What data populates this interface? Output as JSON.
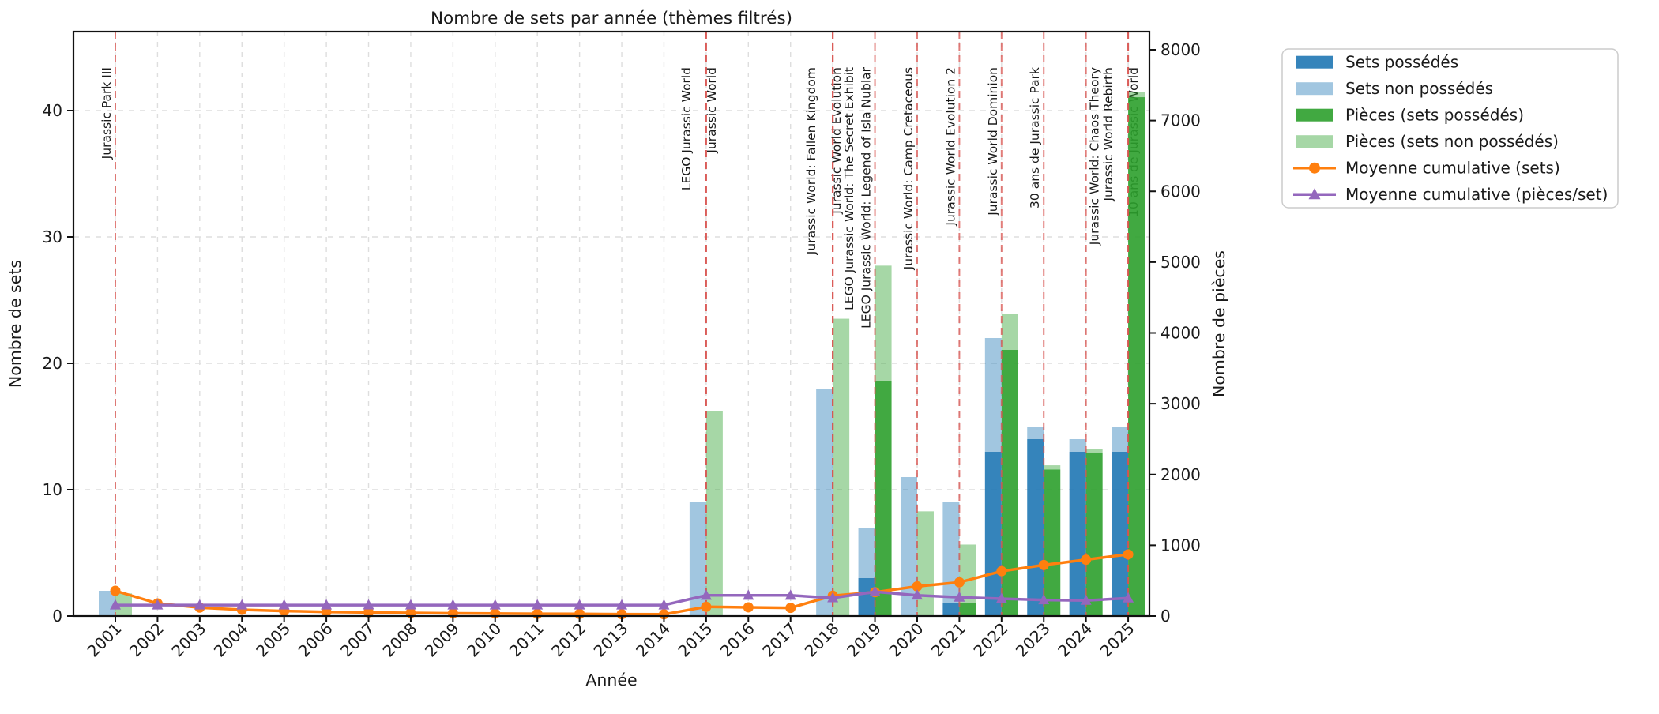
{
  "figure": {
    "title": "Nombre de sets par année (thèmes filtrés)"
  },
  "axes": {
    "x_label": "Année",
    "y_left_label": "Nombre de sets",
    "y_right_label": "Nombre de pièces",
    "y_left_ticks": [
      0,
      10,
      20,
      30,
      40
    ],
    "y_right_ticks": [
      0,
      1000,
      2000,
      3000,
      4000,
      5000,
      6000,
      7000,
      8000
    ]
  },
  "chart_data": {
    "type": "bar",
    "subtype": "combo-bar-line-dual-axis",
    "title": "Nombre de sets par année (thèmes filtrés)",
    "xlabel": "Année",
    "ylabel": "Nombre de sets",
    "ylabel_right": "Nombre de pièces",
    "ylim_left": [
      0,
      46
    ],
    "ylim_right": [
      0,
      8250
    ],
    "grid": true,
    "legend_position": "outside-upper-right",
    "categories": [
      2001,
      2002,
      2003,
      2004,
      2005,
      2006,
      2007,
      2008,
      2009,
      2010,
      2011,
      2012,
      2013,
      2014,
      2015,
      2016,
      2017,
      2018,
      2019,
      2020,
      2021,
      2022,
      2023,
      2024,
      2025
    ],
    "series": [
      {
        "name": "Sets possédés",
        "kind": "bar",
        "axis": "left",
        "stack": "sets",
        "color": "#1f77b4",
        "opacity": 0.9,
        "values": [
          0,
          0,
          0,
          0,
          0,
          0,
          0,
          0,
          0,
          0,
          0,
          0,
          0,
          0,
          0,
          0,
          0,
          0,
          3,
          0,
          1,
          13,
          14,
          13,
          13
        ]
      },
      {
        "name": "Sets non possédés",
        "kind": "bar",
        "axis": "left",
        "stack": "sets",
        "color": "#1f77b4",
        "opacity": 0.42,
        "values": [
          2,
          0,
          0,
          0,
          0,
          0,
          0,
          0,
          0,
          0,
          0,
          0,
          0,
          0,
          9,
          0,
          0,
          18,
          4,
          11,
          8,
          9,
          1,
          1,
          2
        ]
      },
      {
        "name": "Pièces (sets possédés)",
        "kind": "bar",
        "axis": "right",
        "stack": "pieces",
        "color": "#2ca02c",
        "opacity": 0.9,
        "values": [
          0,
          0,
          0,
          0,
          0,
          0,
          0,
          0,
          0,
          0,
          0,
          0,
          0,
          0,
          0,
          0,
          0,
          0,
          3320,
          0,
          190,
          3760,
          2070,
          2310,
          7330
        ]
      },
      {
        "name": "Pièces (sets non possédés)",
        "kind": "bar",
        "axis": "right",
        "stack": "pieces",
        "color": "#2ca02c",
        "opacity": 0.42,
        "values": [
          320,
          0,
          0,
          0,
          0,
          0,
          0,
          0,
          0,
          0,
          0,
          0,
          0,
          0,
          2900,
          0,
          0,
          4200,
          1630,
          1480,
          820,
          510,
          60,
          50,
          70
        ]
      },
      {
        "name": "Moyenne cumulative (sets)",
        "kind": "line",
        "axis": "left",
        "color": "#ff7f0e",
        "marker": "circle",
        "values": [
          2.0,
          1.0,
          0.67,
          0.5,
          0.4,
          0.33,
          0.29,
          0.25,
          0.22,
          0.2,
          0.18,
          0.17,
          0.15,
          0.14,
          0.73,
          0.69,
          0.65,
          1.61,
          1.89,
          2.35,
          2.67,
          3.55,
          4.04,
          4.46,
          4.88
        ]
      },
      {
        "name": "Moyenne cumulative (pièces/set)",
        "kind": "line",
        "axis": "right",
        "color": "#9467bd",
        "marker": "triangle",
        "values": [
          155,
          155,
          155,
          155,
          155,
          155,
          155,
          155,
          155,
          155,
          155,
          155,
          155,
          155,
          292,
          292,
          292,
          256,
          343,
          294,
          265,
          245,
          228,
          220,
          254
        ]
      }
    ],
    "annotations": [
      {
        "year": 2001,
        "label": "Jurassic Park III"
      },
      {
        "year": 2015,
        "label": "LEGO Jurassic World"
      },
      {
        "year": 2015,
        "label": "Jurassic World"
      },
      {
        "year": 2018,
        "label": "Jurassic World: Fallen Kingdom"
      },
      {
        "year": 2018,
        "label": "Jurassic World Evolution"
      },
      {
        "year": 2018,
        "label": "LEGO Jurassic World: The Secret Exhibit"
      },
      {
        "year": 2019,
        "label": "LEGO Jurassic World: Legend of Isla Nublar"
      },
      {
        "year": 2020,
        "label": "Jurassic World: Camp Cretaceous"
      },
      {
        "year": 2021,
        "label": "Jurassic World Evolution 2"
      },
      {
        "year": 2022,
        "label": "Jurassic World Dominion"
      },
      {
        "year": 2023,
        "label": "30 ans de Jurassic Park"
      },
      {
        "year": 2024,
        "label": "Jurassic World: Chaos Theory"
      },
      {
        "year": 2025,
        "label": "Jurassic World Rebirth"
      },
      {
        "year": 2025,
        "label": "10 ans de Jurassic World"
      }
    ],
    "annotation_style": {
      "line_color": "#d9534f",
      "line_style": "dashed",
      "text_color": "#d43d3d"
    },
    "grid_color": "#dedede"
  }
}
